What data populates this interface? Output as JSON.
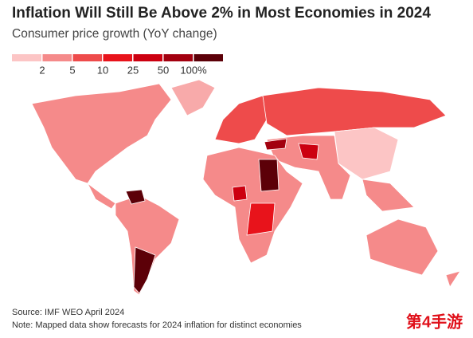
{
  "title": "Inflation Will Still Be Above 2% in Most Economies in 2024",
  "subtitle": "Consumer price growth (YoY change)",
  "legend": {
    "colors": [
      "#fcc5c5",
      "#f58a8a",
      "#ee4b4b",
      "#e8131b",
      "#cc0010",
      "#a3000f",
      "#5c0008"
    ],
    "ticks": [
      2,
      5,
      10,
      25,
      50,
      {
        "value": 100,
        "label": "100%"
      }
    ]
  },
  "source": "Source: IMF WEO April 2024",
  "note": "Note: Mapped data show forecasts for 2024 inflation for distinct economies",
  "watermark": "第4手游"
}
